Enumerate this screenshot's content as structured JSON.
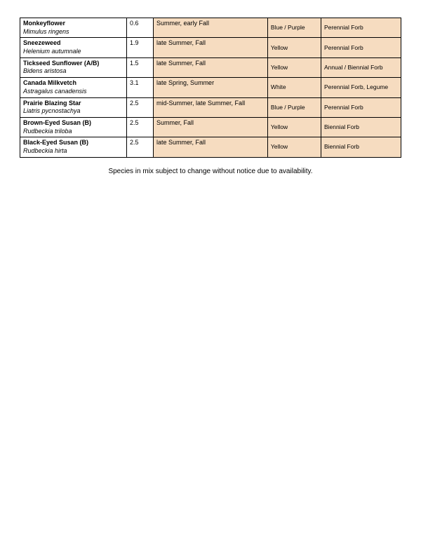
{
  "table": {
    "columns": [
      "name",
      "value",
      "bloom",
      "color",
      "type"
    ],
    "col_widths_pct": [
      28,
      7,
      30,
      14,
      21
    ],
    "shaded_bg": "#f6dcc0",
    "border_color": "#000000",
    "font_size_main": 9,
    "font_size_shaded": 8.5,
    "rows": [
      {
        "common": "Monkeyflower",
        "latin": "Mimulus ringens",
        "value": "0.6",
        "bloom": "Summer, early Fall",
        "color": "Blue / Purple",
        "type": "Perennial Forb"
      },
      {
        "common": "Sneezeweed",
        "latin": "Helenium autumnale",
        "value": "1.9",
        "bloom": "late Summer, Fall",
        "color": "Yellow",
        "type": "Perennial Forb"
      },
      {
        "common": "Tickseed Sunflower (A/B)",
        "latin": "Bidens aristosa",
        "value": "1.5",
        "bloom": "late Summer, Fall",
        "color": "Yellow",
        "type": "Annual / Biennial Forb"
      },
      {
        "common": "Canada Milkvetch",
        "latin": "Astragalus canadensis",
        "value": "3.1",
        "bloom": "late Spring, Summer",
        "color": "White",
        "type": "Perennial Forb, Legume"
      },
      {
        "common": "Prairie Blazing Star",
        "latin": "Liatris pycnostachya",
        "value": "2.5",
        "bloom": "mid-Summer, late Summer, Fall",
        "color": "Blue / Purple",
        "type": "Perennial Forb"
      },
      {
        "common": "Brown-Eyed Susan (B)",
        "latin": "Rudbeckia triloba",
        "value": "2.5",
        "bloom": "Summer, Fall",
        "color": "Yellow",
        "type": "Biennial Forb"
      },
      {
        "common": "Black-Eyed Susan (B)",
        "latin": "Rudbeckia hirta",
        "value": "2.5",
        "bloom": "late Summer, Fall",
        "color": "Yellow",
        "type": "Biennial Forb"
      }
    ]
  },
  "footnote": "Species in mix subject to change without notice due to availability."
}
